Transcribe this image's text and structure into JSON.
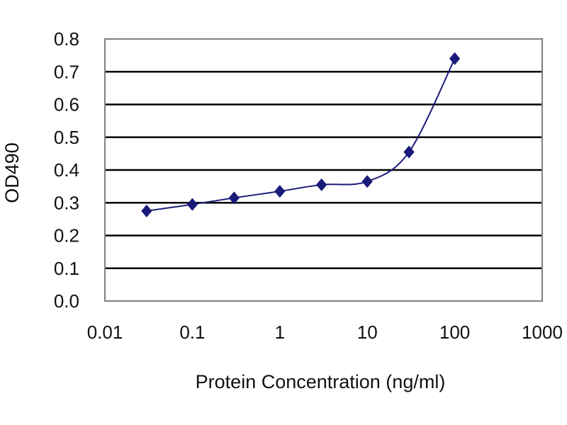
{
  "chart_data": {
    "type": "scatter",
    "title": "",
    "xlabel": "Protein Concentration (ng/ml)",
    "ylabel": "OD490",
    "x_scale": "log",
    "xlim": [
      0.01,
      1000
    ],
    "ylim": [
      0.0,
      0.8
    ],
    "x_ticks": [
      0.01,
      0.1,
      1,
      10,
      100,
      1000
    ],
    "x_tick_labels": [
      "0.01",
      "0.1",
      "1",
      "10",
      "100",
      "1000"
    ],
    "y_ticks": [
      0.0,
      0.1,
      0.2,
      0.3,
      0.4,
      0.5,
      0.6,
      0.7,
      0.8
    ],
    "y_tick_labels": [
      "0.0",
      "0.1",
      "0.2",
      "0.3",
      "0.4",
      "0.5",
      "0.6",
      "0.7",
      "0.8"
    ],
    "grid": "horizontal",
    "legend": "none",
    "series": [
      {
        "x": [
          0.03,
          0.1,
          0.3,
          1,
          3,
          10,
          30,
          100
        ],
        "y": [
          0.275,
          0.295,
          0.315,
          0.335,
          0.355,
          0.365,
          0.455,
          0.74
        ],
        "marker": "diamond",
        "line": "smooth",
        "color": "#1a1a7a"
      }
    ],
    "colors": {
      "plot_border": "#808080",
      "grid": "#000000",
      "series": "#1a1a7a",
      "text": "#111111"
    }
  }
}
